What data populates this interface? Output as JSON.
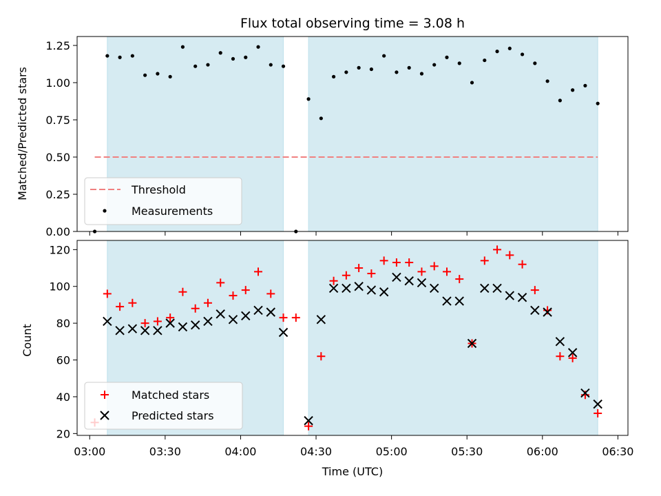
{
  "chart_data": [
    {
      "type": "scatter",
      "title": "Flux total observing time = 3.08 h",
      "xlabel": "",
      "ylabel": "Matched/Predicted stars",
      "xlim": [
        "02:55",
        "06:34"
      ],
      "ylim": [
        0,
        1.31
      ],
      "yticks": [
        0.0,
        0.25,
        0.5,
        0.75,
        1.0,
        1.25
      ],
      "ytick_labels": [
        "0.00",
        "0.25",
        "0.50",
        "0.75",
        "1.00",
        "1.25"
      ],
      "shaded_spans": [
        [
          "03:07",
          "04:17"
        ],
        [
          "04:27",
          "06:22"
        ]
      ],
      "shade_color": "#add8e6",
      "threshold": {
        "name": "Threshold",
        "y": 0.5,
        "x": [
          "03:02",
          "06:22"
        ],
        "color": "#f08080"
      },
      "series": [
        {
          "name": "Measurements",
          "color": "#000000",
          "marker": "dot",
          "x": [
            "03:02",
            "03:07",
            "03:12",
            "03:17",
            "03:22",
            "03:27",
            "03:32",
            "03:37",
            "03:42",
            "03:47",
            "03:52",
            "03:57",
            "04:02",
            "04:07",
            "04:12",
            "04:17",
            "04:22",
            "04:27",
            "04:32",
            "04:37",
            "04:42",
            "04:47",
            "04:52",
            "04:57",
            "05:02",
            "05:07",
            "05:12",
            "05:17",
            "05:22",
            "05:27",
            "05:32",
            "05:37",
            "05:42",
            "05:47",
            "05:52",
            "05:57",
            "06:02",
            "06:07",
            "06:12",
            "06:17",
            "06:22"
          ],
          "y": [
            0.0,
            1.18,
            1.17,
            1.18,
            1.05,
            1.06,
            1.04,
            1.24,
            1.11,
            1.12,
            1.2,
            1.16,
            1.17,
            1.24,
            1.12,
            1.11,
            0.0,
            0.89,
            0.76,
            1.04,
            1.07,
            1.1,
            1.09,
            1.18,
            1.07,
            1.1,
            1.06,
            1.12,
            1.17,
            1.13,
            1.0,
            1.15,
            1.21,
            1.23,
            1.19,
            1.13,
            1.01,
            0.88,
            0.95,
            0.98,
            0.86
          ]
        }
      ],
      "legend": {
        "position": "lower-left",
        "entries": [
          "Threshold",
          "Measurements"
        ]
      }
    },
    {
      "type": "scatter",
      "title": "",
      "xlabel": "Time (UTC)",
      "ylabel": "Count",
      "xlim": [
        "02:55",
        "06:34"
      ],
      "ylim": [
        19,
        125
      ],
      "xticks": [
        "03:00",
        "03:30",
        "04:00",
        "04:30",
        "05:00",
        "05:30",
        "06:00",
        "06:30"
      ],
      "yticks": [
        20,
        40,
        60,
        80,
        100,
        120
      ],
      "ytick_labels": [
        "20",
        "40",
        "60",
        "80",
        "100",
        "120"
      ],
      "shaded_spans": [
        [
          "03:07",
          "04:17"
        ],
        [
          "04:27",
          "06:22"
        ]
      ],
      "shade_color": "#add8e6",
      "x": [
        "03:02",
        "03:07",
        "03:12",
        "03:17",
        "03:22",
        "03:27",
        "03:32",
        "03:37",
        "03:42",
        "03:47",
        "03:52",
        "03:57",
        "04:02",
        "04:07",
        "04:12",
        "04:17",
        "04:22",
        "04:27",
        "04:32",
        "04:37",
        "04:42",
        "04:47",
        "04:52",
        "04:57",
        "05:02",
        "05:07",
        "05:12",
        "05:17",
        "05:22",
        "05:27",
        "05:32",
        "05:37",
        "05:42",
        "05:47",
        "05:52",
        "05:57",
        "06:02",
        "06:07",
        "06:12",
        "06:17",
        "06:22"
      ],
      "series": [
        {
          "name": "Matched stars",
          "color": "#ff0000",
          "marker": "plus",
          "values": [
            26,
            96,
            89,
            91,
            80,
            81,
            83,
            97,
            88,
            91,
            102,
            95,
            98,
            108,
            96,
            83,
            83,
            24,
            62,
            103,
            106,
            110,
            107,
            114,
            113,
            113,
            108,
            111,
            108,
            104,
            69,
            114,
            120,
            117,
            112,
            98,
            87,
            62,
            61,
            41,
            31
          ]
        },
        {
          "name": "Predicted stars",
          "color": "#000000",
          "marker": "x",
          "values": [
            null,
            81,
            76,
            77,
            76,
            76,
            80,
            78,
            79,
            81,
            85,
            82,
            84,
            87,
            86,
            75,
            null,
            27,
            82,
            99,
            99,
            100,
            98,
            97,
            105,
            103,
            102,
            99,
            92,
            92,
            69,
            99,
            99,
            95,
            94,
            87,
            86,
            70,
            64,
            42,
            36
          ]
        }
      ],
      "legend": {
        "position": "lower-left",
        "entries": [
          "Matched stars",
          "Predicted stars"
        ]
      }
    }
  ]
}
